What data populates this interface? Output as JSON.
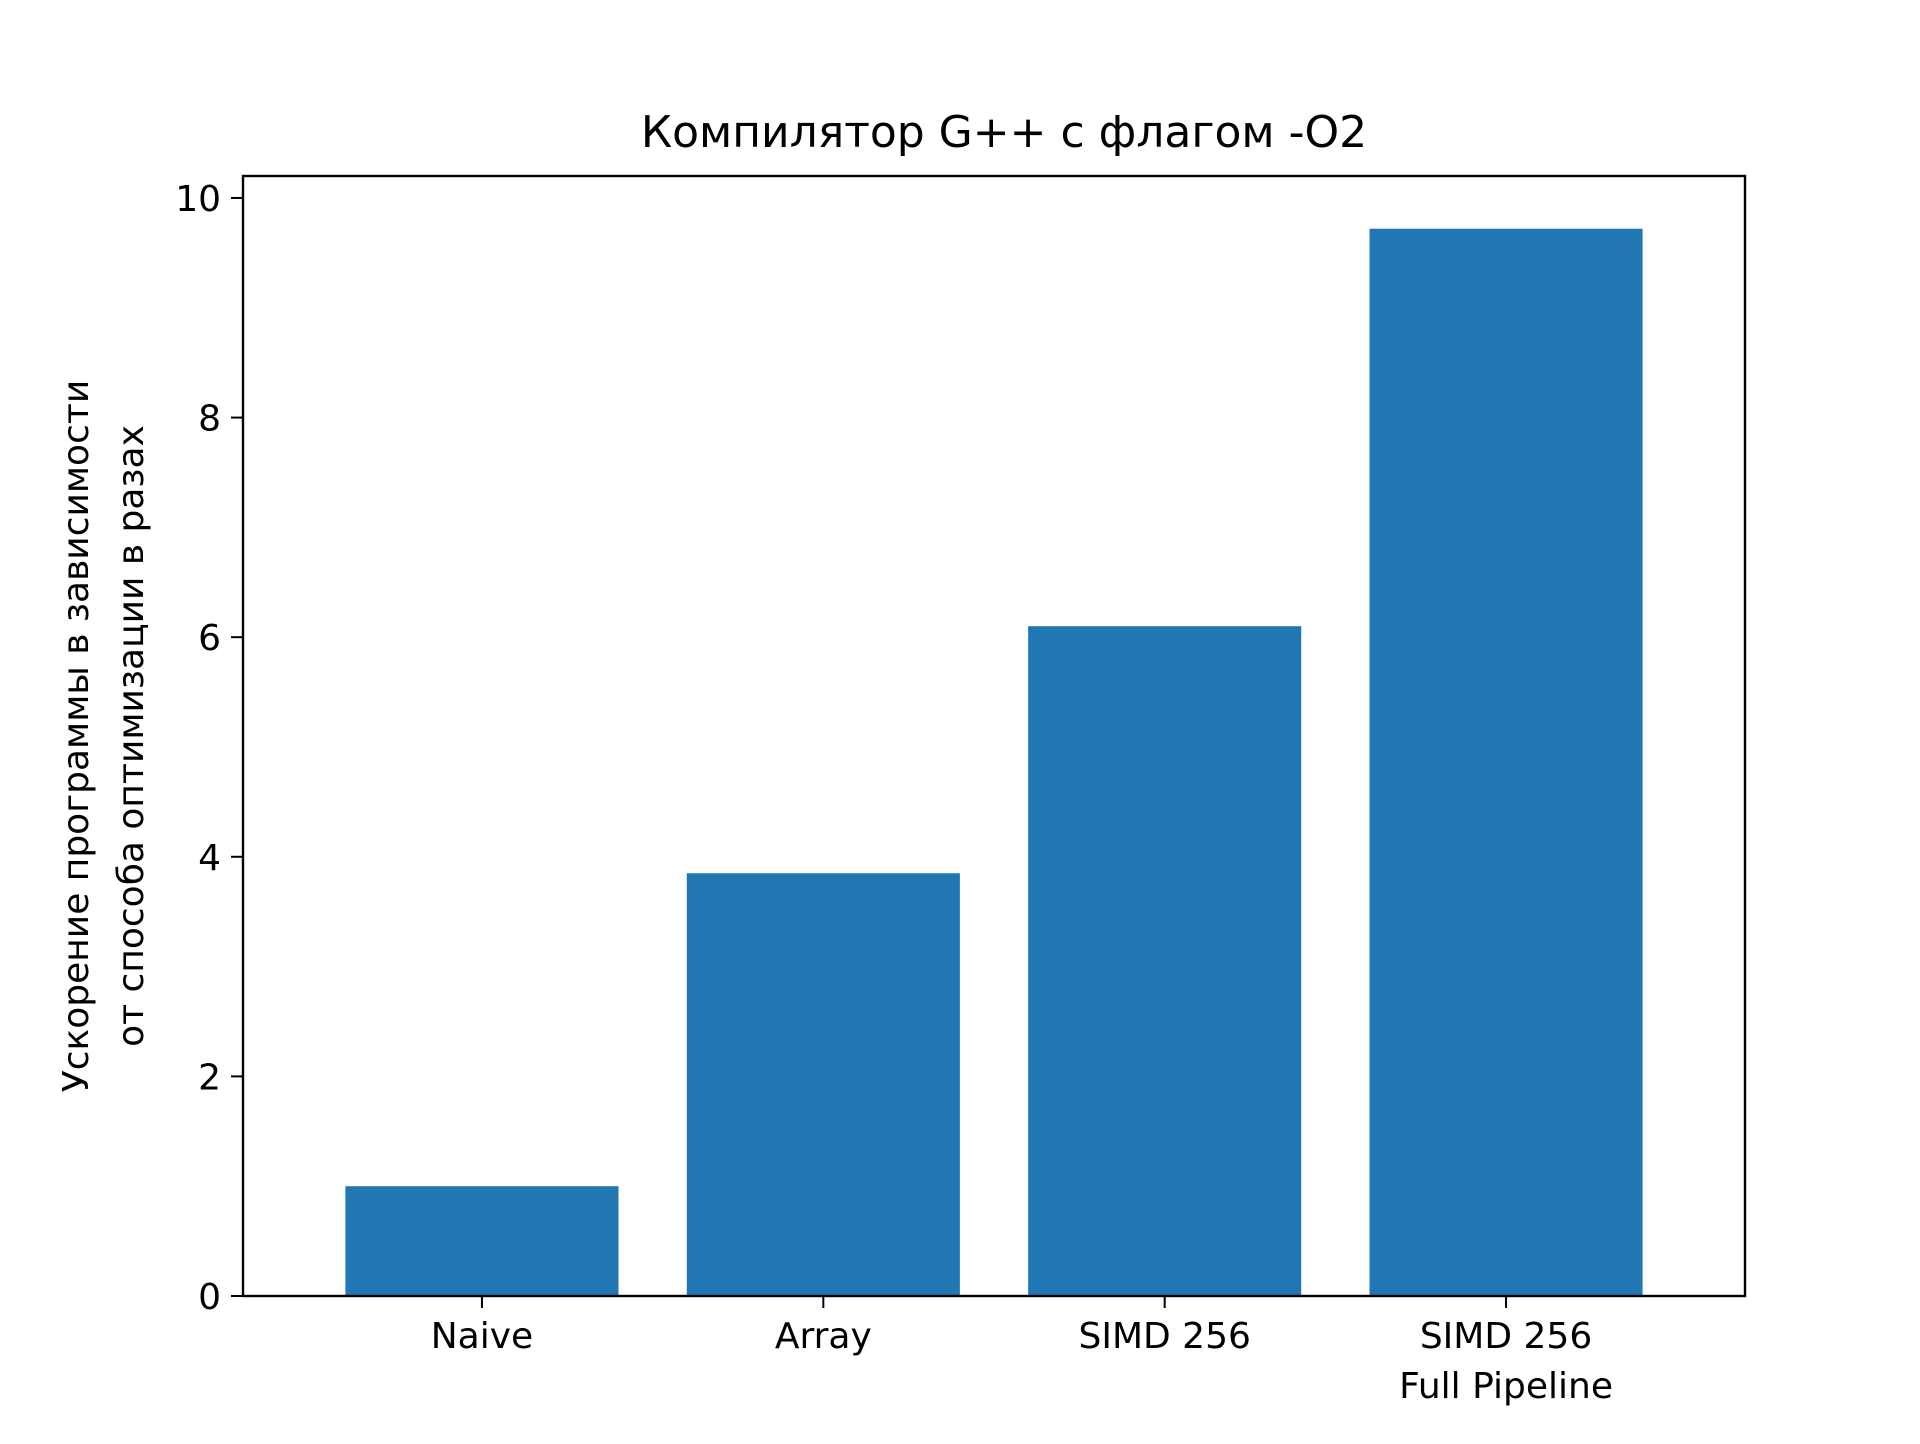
{
  "chart_data": {
    "type": "bar",
    "title": "Компилятор G++ с флагом -O2",
    "ylabel_lines": [
      "Ускорение программы в зависимости",
      "от способа оптимизации в разах"
    ],
    "xlabel": "",
    "categories": [
      [
        "Naive"
      ],
      [
        "Array"
      ],
      [
        "SIMD 256"
      ],
      [
        "SIMD 256",
        "Full Pipeline"
      ]
    ],
    "values": [
      1.0,
      3.85,
      6.1,
      9.72
    ],
    "ylim": [
      0,
      10.2
    ],
    "yticks": [
      0,
      2,
      4,
      6,
      8,
      10
    ],
    "bar_color": "#2077b4",
    "grid": false,
    "legend": "none"
  }
}
